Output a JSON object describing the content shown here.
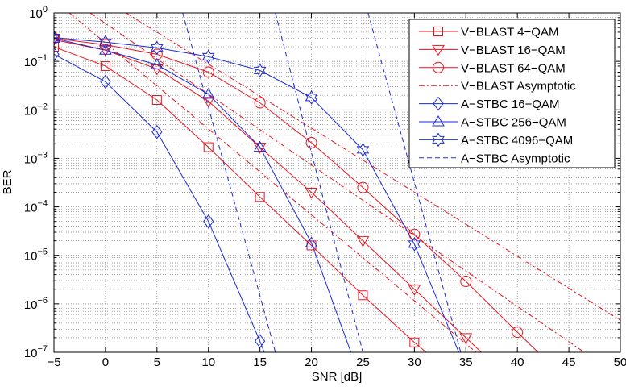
{
  "colors": {
    "red": "#e8141e",
    "blue": "#1a2bd6",
    "grid": "#7f7f7f"
  },
  "chart_data": {
    "type": "line",
    "xlabel": "SNR [dB]",
    "ylabel": "BER",
    "xlim": [
      -5,
      50
    ],
    "ylim": [
      1e-07,
      1
    ],
    "yscale": "log",
    "grid": true,
    "legend_position": "top-right",
    "x_ticks": [
      -5,
      0,
      5,
      10,
      15,
      20,
      25,
      30,
      35,
      40,
      45,
      50
    ],
    "x_tick_labels": [
      "−5",
      "0",
      "5",
      "10",
      "15",
      "20",
      "25",
      "30",
      "35",
      "40",
      "45",
      "50"
    ],
    "y_ticks": [
      {
        "value": 1,
        "base": "10",
        "exp": "0"
      },
      {
        "value": 0.1,
        "base": "10",
        "exp": "−1"
      },
      {
        "value": 0.01,
        "base": "10",
        "exp": "−2"
      },
      {
        "value": 0.001,
        "base": "10",
        "exp": "−3"
      },
      {
        "value": 0.0001,
        "base": "10",
        "exp": "−4"
      },
      {
        "value": 1e-05,
        "base": "10",
        "exp": "−5"
      },
      {
        "value": 1e-06,
        "base": "10",
        "exp": "−6"
      },
      {
        "value": 1e-07,
        "base": "10",
        "exp": "−7"
      }
    ],
    "series": [
      {
        "name": "V−BLAST 4−QAM",
        "color": "#e8141e",
        "dash": "solid",
        "marker": "square",
        "x": [
          -5,
          0,
          5,
          10,
          15,
          20,
          25,
          30,
          32
        ],
        "y": [
          0.2,
          0.08,
          0.016,
          0.0017,
          0.00016,
          1.6e-05,
          1.5e-06,
          1.6e-07,
          7e-08
        ]
      },
      {
        "name": "V−BLAST 16−QAM",
        "color": "#e8141e",
        "dash": "solid",
        "marker": "triangle-down",
        "x": [
          -5,
          0,
          5,
          10,
          15,
          20,
          25,
          30,
          35,
          36.5
        ],
        "y": [
          0.28,
          0.17,
          0.07,
          0.015,
          0.0017,
          0.0002,
          2e-05,
          2e-06,
          2e-07,
          1e-07
        ]
      },
      {
        "name": "V−BLAST 64−QAM",
        "color": "#e8141e",
        "dash": "solid",
        "marker": "circle",
        "x": [
          -5,
          0,
          5,
          10,
          15,
          20,
          25,
          30,
          35,
          40,
          42
        ],
        "y": [
          0.3,
          0.22,
          0.14,
          0.06,
          0.014,
          0.0021,
          0.00025,
          2.7e-05,
          2.9e-06,
          2.6e-07,
          1e-07
        ]
      },
      {
        "name": "V−BLAST Asymptotic",
        "color": "#e8141e",
        "dash": "dashdot",
        "marker": "none",
        "x": [
          -3.5,
          36
        ],
        "y": [
          1,
          1e-07
        ],
        "extra_lines": [
          {
            "x": [
              -1.5,
              46.5
            ],
            "y": [
              1,
              1e-07
            ]
          },
          {
            "x": [
              2,
              55
            ],
            "y": [
              1,
              1e-07
            ]
          }
        ]
      },
      {
        "name": "A−STBC 16−QAM",
        "color": "#1a2bd6",
        "dash": "solid",
        "marker": "diamond",
        "x": [
          -5,
          0,
          5,
          10,
          15,
          15.7
        ],
        "y": [
          0.14,
          0.038,
          0.0035,
          5e-05,
          1.7e-07,
          7e-08
        ]
      },
      {
        "name": "A−STBC 256−QAM",
        "color": "#1a2bd6",
        "dash": "solid",
        "marker": "triangle-up",
        "x": [
          -5,
          0,
          5,
          10,
          15,
          20,
          24
        ],
        "y": [
          0.3,
          0.17,
          0.085,
          0.021,
          0.0017,
          1.8e-05,
          8e-08
        ]
      },
      {
        "name": "A−STBC 4096−QAM",
        "color": "#1a2bd6",
        "dash": "solid",
        "marker": "hexagram",
        "x": [
          -5,
          0,
          5,
          10,
          15,
          20,
          25,
          30,
          34.5
        ],
        "y": [
          0.31,
          0.25,
          0.19,
          0.125,
          0.065,
          0.018,
          0.0015,
          1.7e-05,
          8e-08
        ]
      },
      {
        "name": "A−STBC Asymptotic",
        "color": "#1a2bd6",
        "dash": "dashed",
        "marker": "none",
        "x": [
          7.5,
          16.5
        ],
        "y": [
          1,
          1e-07
        ],
        "extra_lines": [
          {
            "x": [
              16.5,
              25
            ],
            "y": [
              1,
              1e-07
            ]
          },
          {
            "x": [
              25.5,
              34.5
            ],
            "y": [
              1,
              1e-07
            ]
          }
        ]
      }
    ]
  }
}
